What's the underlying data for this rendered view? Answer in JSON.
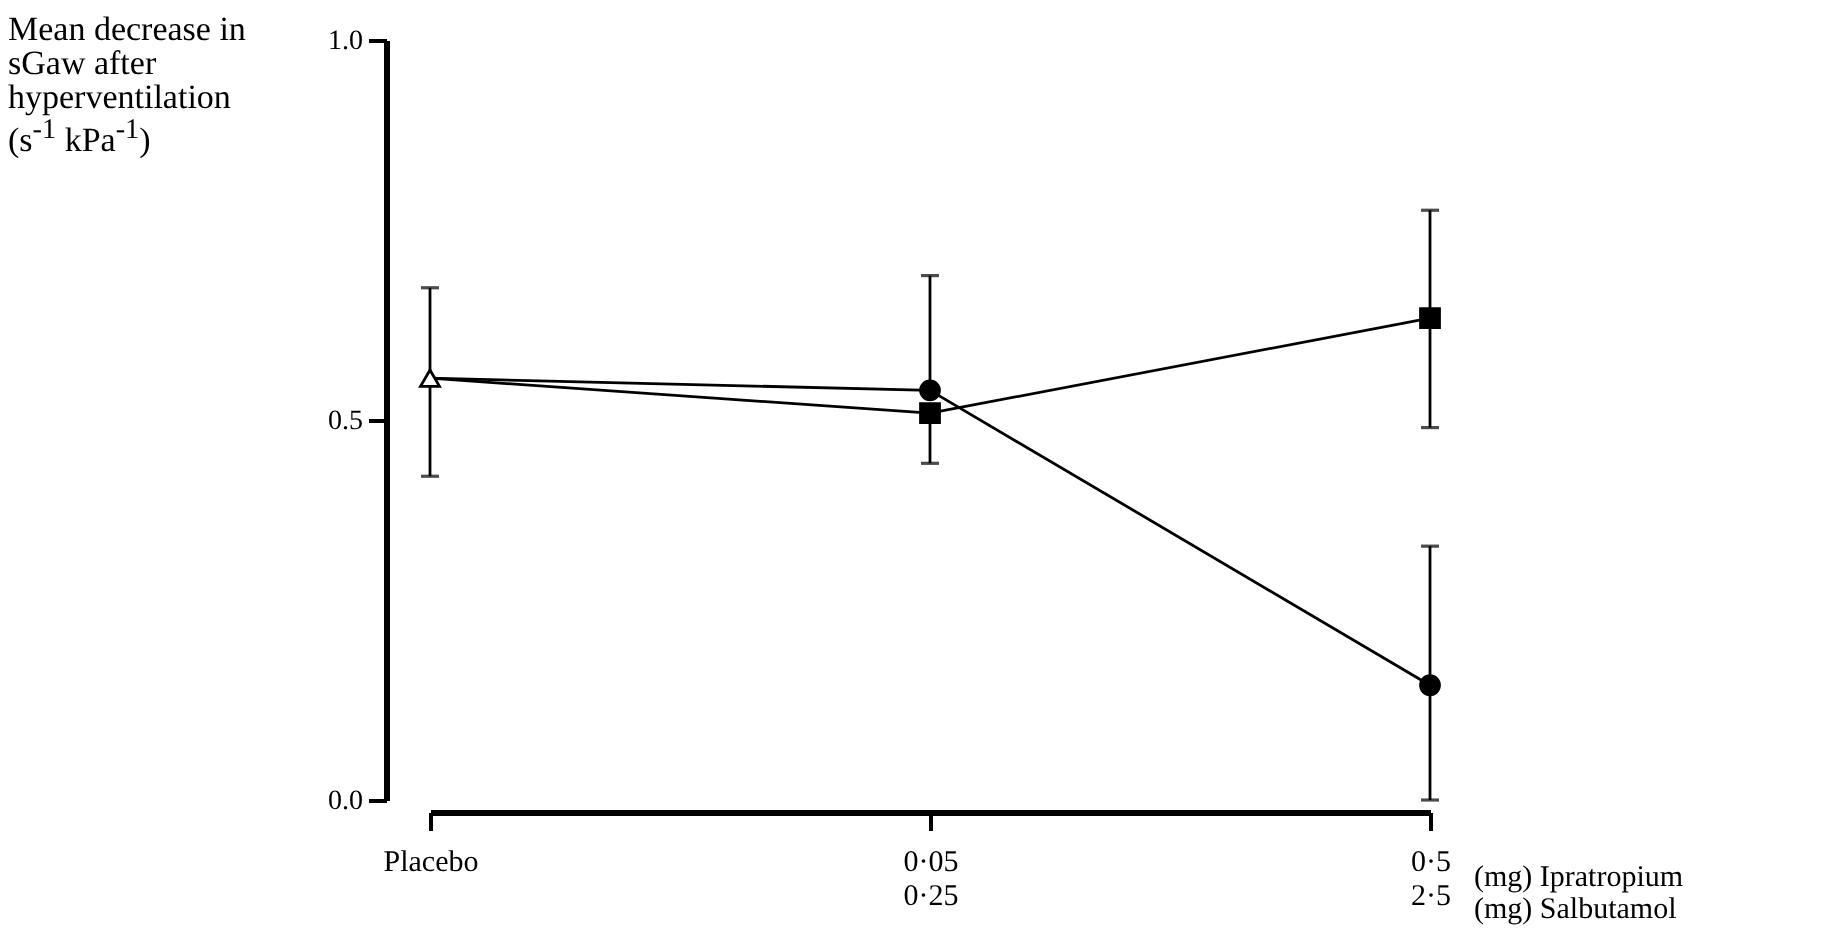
{
  "chart_data": {
    "type": "line",
    "ylabel": "Mean decrease in sGaw after hyperventilation (s$^{-1}$ kPa$^{-1}$)",
    "categories": [
      "Placebo",
      "0·05\n0·25",
      "0·5\n2·5"
    ],
    "series": [
      {
        "type": "line",
        "color": "#000000",
        "marker": "none",
        "values": [
          0.555,
          0.539,
          0.151
        ]
      },
      {
        "type": "line",
        "color": "#000000",
        "marker": "none",
        "values": [
          0.555,
          0.509,
          0.634
        ]
      },
      {
        "type": "scatter",
        "color": "#000000",
        "marker": "circle",
        "values": [
          null,
          0.539,
          0.151
        ],
        "errors": [
          null,
          [
            0.539,
            0.69
          ],
          [
            0,
            0.334
          ]
        ]
      },
      {
        "type": "scatter",
        "color": "#000000",
        "marker": "square",
        "values": [
          null,
          0.509,
          0.634
        ],
        "errors": [
          null,
          [
            0.443,
            0.509
          ],
          [
            0.49,
            0.776
          ]
        ]
      },
      {
        "type": "scatter",
        "color": "#000000",
        "marker": "triangle",
        "values": [
          0.555,
          null,
          null
        ],
        "errors": [
          [
            0.426,
            0.674
          ],
          null,
          null
        ]
      }
    ],
    "ylim": [
      0,
      1
    ],
    "yticks": [
      {
        "value": 0,
        "label": "0.0"
      },
      {
        "value": 0.5,
        "label": "0.5"
      },
      {
        "value": 1,
        "label": "1.0"
      }
    ],
    "annotations": [
      "(mg)   Ipratropium",
      "(mg)   Salbutamol"
    ],
    "line_style": "solid"
  }
}
